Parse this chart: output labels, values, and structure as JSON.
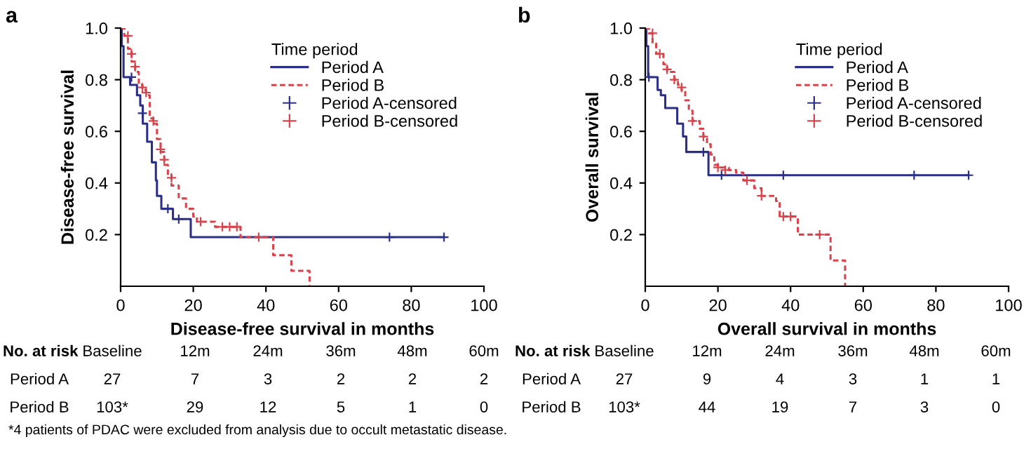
{
  "chart_data": [
    {
      "type": "step",
      "title": "a",
      "xlabel": "Disease-free survival in months",
      "ylabel": "Disease-free survival",
      "legend_title": "Time period",
      "legend": "top right",
      "xlim": [
        0,
        100
      ],
      "ylim": [
        0,
        1
      ],
      "xticks": [
        0,
        20,
        40,
        60,
        80,
        100
      ],
      "yticks": [
        {
          "value": 0.2,
          "label": "0.2"
        },
        {
          "value": 0.4,
          "label": "0.4"
        },
        {
          "value": 0.6,
          "label": "0.6"
        },
        {
          "value": 0.8,
          "label": "0.8"
        },
        {
          "value": 1.0,
          "label": "1.0"
        }
      ],
      "grid": false,
      "series": [
        {
          "name": "Period A",
          "line_style": "solid",
          "color": "#2b2f86",
          "x": [
            0,
            0.3,
            0.8,
            2.6,
            4.5,
            5.4,
            6.1,
            7.3,
            8.6,
            9.7,
            10,
            11.2,
            14.4,
            19.3,
            89
          ],
          "values": [
            1.0,
            0.93,
            0.81,
            0.78,
            0.74,
            0.7,
            0.63,
            0.56,
            0.48,
            0.41,
            0.35,
            0.3,
            0.26,
            0.19,
            0.19
          ]
        },
        {
          "name": "Period B",
          "line_style": "dashed",
          "color": "#d9434b",
          "x": [
            0,
            1,
            2,
            3,
            4,
            5,
            6,
            7,
            8,
            9,
            10,
            11,
            12,
            13,
            14,
            16,
            18,
            20,
            21,
            26,
            33,
            42,
            47,
            52
          ],
          "values": [
            1.0,
            0.97,
            0.92,
            0.87,
            0.83,
            0.78,
            0.76,
            0.74,
            0.65,
            0.63,
            0.57,
            0.52,
            0.47,
            0.43,
            0.39,
            0.34,
            0.3,
            0.27,
            0.25,
            0.23,
            0.19,
            0.12,
            0.06,
            0.0
          ]
        },
        {
          "name": "Period A-censored",
          "type": "scatter",
          "marker": "cross",
          "color": "#2b2f86",
          "x": [
            3,
            6,
            13,
            16,
            74,
            89
          ],
          "values": [
            0.81,
            0.67,
            0.3,
            0.26,
            0.19,
            0.19
          ]
        },
        {
          "name": "Period B-censored",
          "type": "scatter",
          "marker": "cross",
          "color": "#d9434b",
          "x": [
            2,
            3,
            4,
            6,
            7,
            9,
            11,
            12,
            14,
            22,
            28,
            30,
            32,
            38
          ],
          "values": [
            0.97,
            0.9,
            0.85,
            0.77,
            0.75,
            0.64,
            0.53,
            0.49,
            0.42,
            0.25,
            0.23,
            0.23,
            0.23,
            0.19
          ]
        }
      ],
      "annotations": [
        "No. at risk",
        "Baseline",
        "12m",
        "24m",
        "36m",
        "48m",
        "60m",
        "Period A",
        "27",
        "7",
        "3",
        "2",
        "2",
        "2",
        "Period B",
        "103*",
        "29",
        "12",
        "5",
        "1",
        "0",
        "*4 patients of PDAC were excluded from analysis due to occult metastatic disease."
      ]
    },
    {
      "type": "step",
      "title": "b",
      "xlabel": "Overall survival in months",
      "ylabel": "Overall survival",
      "legend_title": "Time period",
      "legend": "top right",
      "xlim": [
        0,
        100
      ],
      "ylim": [
        0,
        1
      ],
      "xticks": [
        0,
        20,
        40,
        60,
        80,
        100
      ],
      "yticks": [
        {
          "value": 0.2,
          "label": "0.2"
        },
        {
          "value": 0.4,
          "label": "0.4"
        },
        {
          "value": 0.6,
          "label": "0.6"
        },
        {
          "value": 0.8,
          "label": "0.8"
        },
        {
          "value": 1.0,
          "label": "1.0"
        }
      ],
      "grid": false,
      "series": [
        {
          "name": "Period A",
          "line_style": "solid",
          "color": "#2b2f86",
          "x": [
            0,
            0.3,
            0.8,
            3.4,
            4.3,
            5.5,
            8.8,
            10.4,
            11.3,
            17.4,
            89
          ],
          "values": [
            1.0,
            0.93,
            0.81,
            0.76,
            0.74,
            0.69,
            0.63,
            0.58,
            0.52,
            0.43,
            0.43
          ]
        },
        {
          "name": "Period B",
          "line_style": "dashed",
          "color": "#d9434b",
          "x": [
            0,
            1,
            2,
            3,
            5,
            6,
            8,
            9,
            10,
            11,
            12,
            13,
            15,
            16,
            17,
            18,
            19,
            20,
            23,
            25,
            27,
            30,
            32,
            36,
            37,
            42,
            51,
            55
          ],
          "values": [
            1.0,
            0.98,
            0.94,
            0.9,
            0.86,
            0.83,
            0.8,
            0.78,
            0.76,
            0.72,
            0.68,
            0.64,
            0.61,
            0.58,
            0.55,
            0.51,
            0.47,
            0.46,
            0.45,
            0.44,
            0.41,
            0.38,
            0.35,
            0.33,
            0.27,
            0.2,
            0.1,
            0.0
          ]
        },
        {
          "name": "Period A-censored",
          "type": "scatter",
          "marker": "cross",
          "color": "#2b2f86",
          "x": [
            1,
            16,
            21,
            38,
            74,
            89
          ],
          "values": [
            0.81,
            0.52,
            0.43,
            0.43,
            0.43,
            0.43
          ]
        },
        {
          "name": "Period B-censored",
          "type": "scatter",
          "marker": "cross",
          "color": "#d9434b",
          "x": [
            2,
            4,
            6,
            8,
            10,
            13,
            16,
            20,
            22,
            28,
            32,
            38,
            40,
            48
          ],
          "values": [
            0.98,
            0.9,
            0.84,
            0.8,
            0.77,
            0.64,
            0.58,
            0.46,
            0.45,
            0.41,
            0.35,
            0.27,
            0.27,
            0.2
          ]
        }
      ],
      "annotations": [
        "No. at risk",
        "Baseline",
        "12m",
        "24m",
        "36m",
        "48m",
        "60m",
        "Period A",
        "27",
        "9",
        "4",
        "3",
        "1",
        "1",
        "Period B",
        "103*",
        "44",
        "19",
        "7",
        "3",
        "0"
      ]
    }
  ]
}
